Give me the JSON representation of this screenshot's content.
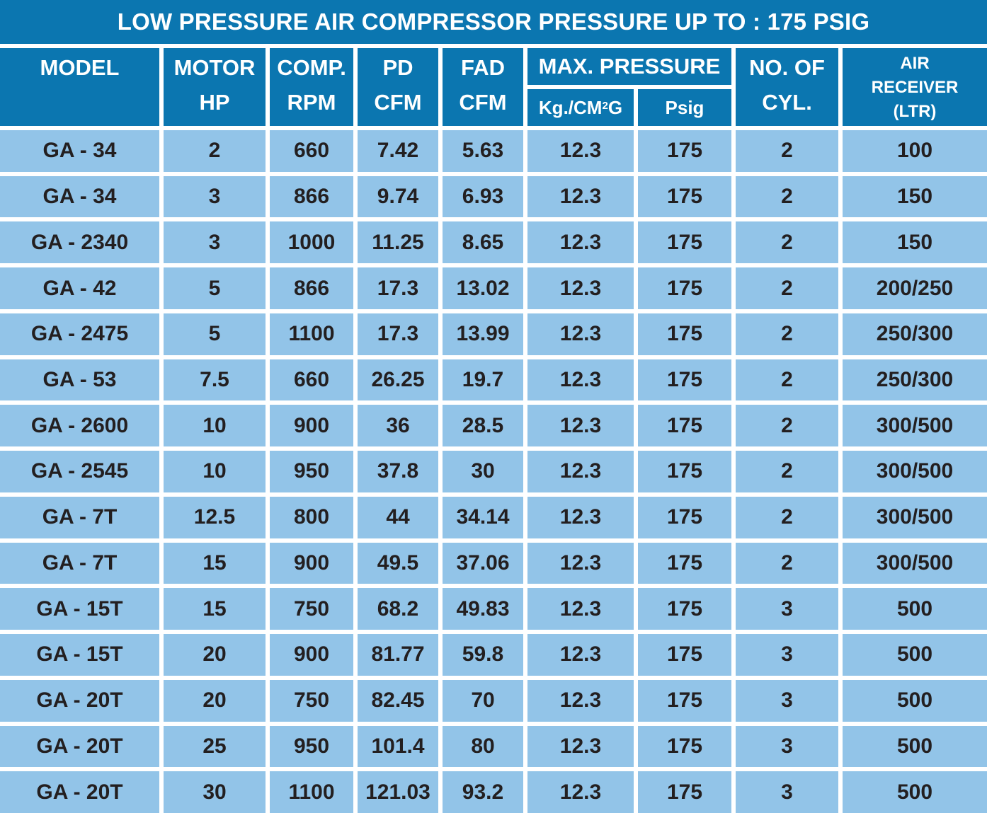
{
  "title": "LOW PRESSURE AIR COMPRESSOR PRESSURE UP TO : 175 PSIG",
  "colors": {
    "header_blue": "#0b76b0",
    "cell_blue": "#92c4e8",
    "grid_white": "#ffffff",
    "header_text": "#ffffff",
    "cell_text": "#231f20"
  },
  "header": {
    "model": "MODEL",
    "motor_hp": [
      "MOTOR",
      "HP"
    ],
    "comp_rpm": [
      "COMP.",
      "RPM"
    ],
    "pd_cfm": [
      "PD",
      "CFM"
    ],
    "fad_cfm": [
      "FAD",
      "CFM"
    ],
    "max_pressure": "MAX. PRESSURE",
    "kg_cm2g": {
      "prefix": "Kg./CM",
      "sup": "2",
      "suffix": "G"
    },
    "psig": "Psig",
    "no_of_cyl": [
      "NO. OF",
      "CYL."
    ],
    "air_receiver": [
      "AIR",
      "RECEIVER",
      "(LTR)"
    ]
  },
  "chart_data": {
    "type": "table",
    "title": "LOW PRESSURE AIR COMPRESSOR PRESSURE UP TO : 175 PSIG",
    "columns": [
      "MODEL",
      "MOTOR HP",
      "COMP. RPM",
      "PD CFM",
      "FAD CFM",
      "MAX. PRESSURE Kg./CM2G",
      "MAX. PRESSURE Psig",
      "NO. OF CYL.",
      "AIR RECEIVER (LTR)"
    ],
    "column_keys": [
      "model",
      "motor-hp",
      "comp-rpm",
      "pd-cfm",
      "fad-cfm",
      "kg-cm2g",
      "psig",
      "no-of-cyl",
      "air-receiver"
    ],
    "rows": [
      [
        "GA - 34",
        "2",
        "660",
        "7.42",
        "5.63",
        "12.3",
        "175",
        "2",
        "100"
      ],
      [
        "GA - 34",
        "3",
        "866",
        "9.74",
        "6.93",
        "12.3",
        "175",
        "2",
        "150"
      ],
      [
        "GA - 2340",
        "3",
        "1000",
        "11.25",
        "8.65",
        "12.3",
        "175",
        "2",
        "150"
      ],
      [
        "GA - 42",
        "5",
        "866",
        "17.3",
        "13.02",
        "12.3",
        "175",
        "2",
        "200/250"
      ],
      [
        "GA - 2475",
        "5",
        "1100",
        "17.3",
        "13.99",
        "12.3",
        "175",
        "2",
        "250/300"
      ],
      [
        "GA - 53",
        "7.5",
        "660",
        "26.25",
        "19.7",
        "12.3",
        "175",
        "2",
        "250/300"
      ],
      [
        "GA - 2600",
        "10",
        "900",
        "36",
        "28.5",
        "12.3",
        "175",
        "2",
        "300/500"
      ],
      [
        "GA - 2545",
        "10",
        "950",
        "37.8",
        "30",
        "12.3",
        "175",
        "2",
        "300/500"
      ],
      [
        "GA - 7T",
        "12.5",
        "800",
        "44",
        "34.14",
        "12.3",
        "175",
        "2",
        "300/500"
      ],
      [
        "GA - 7T",
        "15",
        "900",
        "49.5",
        "37.06",
        "12.3",
        "175",
        "2",
        "300/500"
      ],
      [
        "GA - 15T",
        "15",
        "750",
        "68.2",
        "49.83",
        "12.3",
        "175",
        "3",
        "500"
      ],
      [
        "GA - 15T",
        "20",
        "900",
        "81.77",
        "59.8",
        "12.3",
        "175",
        "3",
        "500"
      ],
      [
        "GA - 20T",
        "20",
        "750",
        "82.45",
        "70",
        "12.3",
        "175",
        "3",
        "500"
      ],
      [
        "GA - 20T",
        "25",
        "950",
        "101.4",
        "80",
        "12.3",
        "175",
        "3",
        "500"
      ],
      [
        "GA - 20T",
        "30",
        "1100",
        "121.03",
        "93.2",
        "12.3",
        "175",
        "3",
        "500"
      ]
    ]
  }
}
